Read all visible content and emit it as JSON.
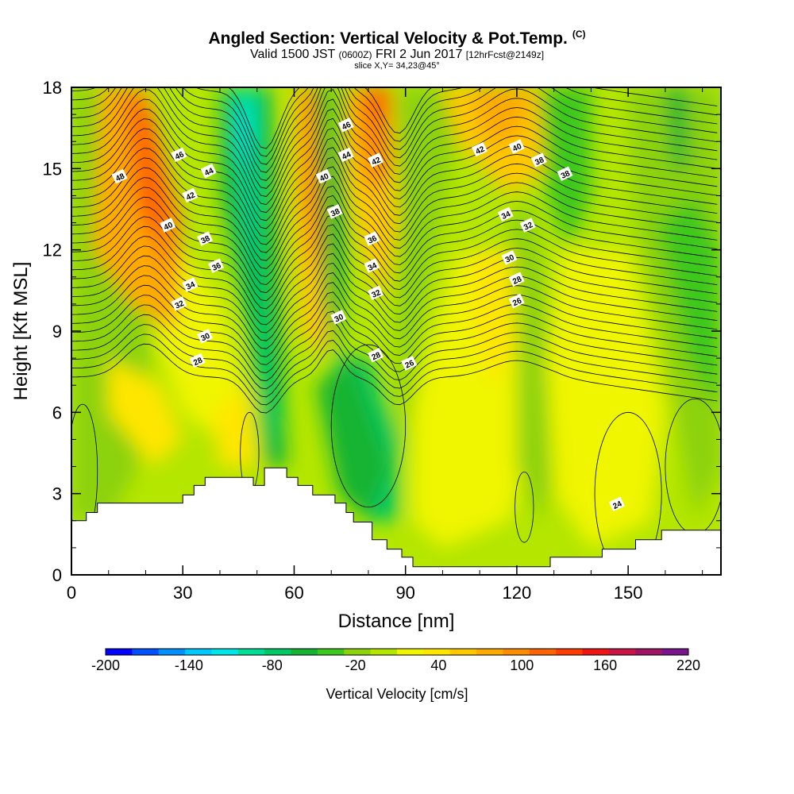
{
  "header": {
    "title": "Angled Section: Vertical Velocity & Pot.Temp.",
    "title_unit": "(C)",
    "subtitle_main": "Valid 1500 JST",
    "subtitle_zulu": "(0600Z)",
    "subtitle_date": "FRI 2 Jun 2017",
    "subtitle_fcst": "[12hrFcst@2149z]",
    "slice": "slice X,Y= 34,23@45°"
  },
  "chart_data": {
    "type": "heatmap",
    "title": "Angled Section: Vertical Velocity & Pot.Temp.",
    "xlabel": "Distance [nm]",
    "ylabel": "Height [Kft MSL]",
    "xlim": [
      0,
      175
    ],
    "ylim": [
      0,
      18
    ],
    "x_ticks": [
      "0",
      "30",
      "60",
      "90",
      "120",
      "150"
    ],
    "x_tick_values": [
      0,
      30,
      60,
      90,
      120,
      150
    ],
    "y_ticks": [
      "0",
      "3",
      "6",
      "9",
      "12",
      "15",
      "18"
    ],
    "y_tick_values": [
      0,
      3,
      6,
      9,
      12,
      15,
      18
    ],
    "colorbar": {
      "title": "Vertical Velocity [cm/s]",
      "labels": [
        "-200",
        "-140",
        "-80",
        "-20",
        "40",
        "100",
        "160",
        "220"
      ],
      "label_values": [
        -200,
        -140,
        -80,
        -20,
        40,
        100,
        160,
        220
      ],
      "colors": [
        "#0000ff",
        "#0050ff",
        "#0090ff",
        "#00c8ff",
        "#00e6e6",
        "#00dc96",
        "#00c864",
        "#14b432",
        "#3cc81e",
        "#8cd20a",
        "#b4e600",
        "#f0f500",
        "#ffe600",
        "#ffc800",
        "#ffaa00",
        "#ff8c00",
        "#ff6400",
        "#ff3c00",
        "#f01414",
        "#c81446",
        "#a01464",
        "#78148c"
      ]
    },
    "terrain_kft": [
      [
        0,
        2.0
      ],
      [
        4,
        2.0
      ],
      [
        4,
        2.3
      ],
      [
        7,
        2.3
      ],
      [
        7,
        2.65
      ],
      [
        30,
        2.65
      ],
      [
        30,
        2.95
      ],
      [
        33,
        2.95
      ],
      [
        33,
        3.3
      ],
      [
        36,
        3.3
      ],
      [
        36,
        3.6
      ],
      [
        49,
        3.6
      ],
      [
        49,
        3.3
      ],
      [
        52,
        3.3
      ],
      [
        52,
        3.95
      ],
      [
        58,
        3.95
      ],
      [
        58,
        3.6
      ],
      [
        61,
        3.6
      ],
      [
        61,
        3.3
      ],
      [
        65,
        3.3
      ],
      [
        65,
        2.95
      ],
      [
        71,
        2.95
      ],
      [
        71,
        2.65
      ],
      [
        74,
        2.65
      ],
      [
        74,
        2.3
      ],
      [
        76,
        2.3
      ],
      [
        76,
        1.95
      ],
      [
        81,
        1.95
      ],
      [
        81,
        1.3
      ],
      [
        85,
        1.3
      ],
      [
        85,
        0.95
      ],
      [
        89,
        0.95
      ],
      [
        89,
        0.65
      ],
      [
        92,
        0.65
      ],
      [
        92,
        0.3
      ],
      [
        129,
        0.3
      ],
      [
        129,
        0.65
      ],
      [
        143,
        0.65
      ],
      [
        143,
        0.95
      ],
      [
        152,
        0.95
      ],
      [
        152,
        1.3
      ],
      [
        159,
        1.3
      ],
      [
        159,
        1.65
      ],
      [
        175,
        1.65
      ]
    ],
    "contour_labels": [
      "48",
      "46",
      "44",
      "42",
      "40",
      "38",
      "36",
      "34",
      "32",
      "30",
      "28",
      "46",
      "44",
      "42",
      "40",
      "38",
      "36",
      "34",
      "32",
      "30",
      "28",
      "26",
      "42",
      "40",
      "38",
      "38",
      "34",
      "32",
      "30",
      "28",
      "26",
      "24"
    ],
    "contour_label_values": [
      48,
      46,
      44,
      42,
      40,
      38,
      36,
      34,
      32,
      30,
      28,
      46,
      44,
      42,
      40,
      38,
      36,
      34,
      32,
      30,
      28,
      26,
      42,
      40,
      38,
      38,
      34,
      32,
      30,
      28,
      26,
      24
    ],
    "contour_label_points": [
      [
        13,
        14.7
      ],
      [
        29,
        15.5
      ],
      [
        37,
        14.9
      ],
      [
        32,
        14.0
      ],
      [
        26,
        12.9
      ],
      [
        36,
        12.4
      ],
      [
        39,
        11.4
      ],
      [
        32,
        10.7
      ],
      [
        29,
        10.0
      ],
      [
        36,
        8.8
      ],
      [
        34,
        7.9
      ],
      [
        74,
        16.6
      ],
      [
        74,
        15.5
      ],
      [
        82,
        15.3
      ],
      [
        68,
        14.7
      ],
      [
        71,
        13.4
      ],
      [
        81,
        12.4
      ],
      [
        81,
        11.4
      ],
      [
        82,
        10.4
      ],
      [
        72,
        9.5
      ],
      [
        82,
        8.1
      ],
      [
        91,
        7.8
      ],
      [
        110,
        15.7
      ],
      [
        120,
        15.8
      ],
      [
        126,
        15.3
      ],
      [
        133,
        14.8
      ],
      [
        117,
        13.3
      ],
      [
        123,
        12.9
      ],
      [
        118,
        11.7
      ],
      [
        120,
        10.9
      ],
      [
        120,
        10.1
      ],
      [
        147,
        2.6
      ]
    ],
    "updraft_regions_orange": [
      [
        18,
        14.5
      ],
      [
        70,
        16.5
      ],
      [
        81,
        17.5
      ],
      [
        118,
        16.5
      ]
    ],
    "downdraft_regions_cyan": [
      [
        46,
        15.5
      ],
      [
        48,
        12
      ],
      [
        56,
        6
      ]
    ]
  }
}
